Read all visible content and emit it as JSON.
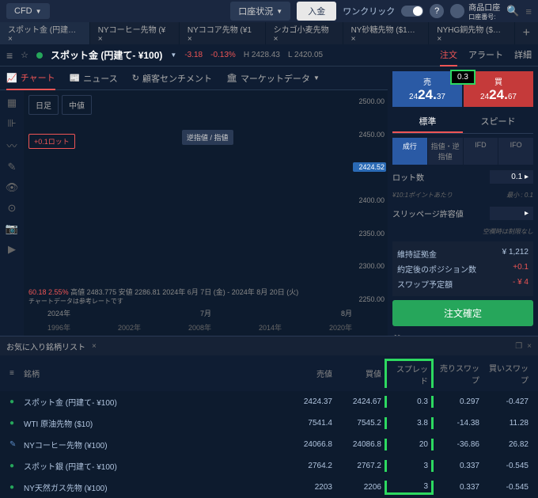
{
  "topbar": {
    "cfd": "CFD",
    "account_status": "口座状況",
    "deposit": "入金",
    "oneclick": "ワンクリック",
    "product_account": "商品口座",
    "account_num": "口座番号:"
  },
  "tabs": [
    {
      "label": "スポット金 (円建… ×",
      "active": true
    },
    {
      "label": "NYコーヒー先物 (¥ ×"
    },
    {
      "label": "NYココア先物 (¥1 ×"
    },
    {
      "label": "シカゴ小麦先物 ×"
    },
    {
      "label": "NY砂糖先物 ($1… ×"
    },
    {
      "label": "NYHG銅先物 ($… ×"
    }
  ],
  "symbol": {
    "name": "スポット金 (円建て- ¥100)",
    "chg": "-3.18",
    "chg_pct": "-0.13%",
    "h": "H 2428.43",
    "l": "L 2420.05"
  },
  "rtabs": {
    "order": "注文",
    "alert": "アラート",
    "detail": "詳細"
  },
  "sectabs": {
    "chart": "チャート",
    "news": "ニュース",
    "sentiment": "顧客センチメント",
    "market": "マーケットデータ"
  },
  "chart": {
    "tf1": "日足",
    "tf2": "中値",
    "lot": "+0.1ロット",
    "tooltip": "逆指値 / 指値",
    "yvals": [
      "2500.00",
      "2450.00",
      "2424.52",
      "2400.00",
      "2350.00",
      "2300.00",
      "2250.00"
    ],
    "xvals": [
      "2024年",
      "7月",
      "8月"
    ],
    "xvals2": [
      "1996年",
      "2002年",
      "2008年",
      "2014年",
      "2020年"
    ],
    "info_val": "60.18",
    "info_pct": "2.55%",
    "info_h": "高値 2483.775",
    "info_l": "安値 2286.81",
    "info_dates": "2024年 6月 7日 (金) - 2024年 8月 20日 (火)",
    "info_note": "チャートデータは参考レートです",
    "candles": [
      {
        "x": 2,
        "t": 70,
        "h": 15,
        "c": "#2a6ab5"
      },
      {
        "x": 4,
        "t": 65,
        "h": 12,
        "c": "#e55"
      },
      {
        "x": 6,
        "t": 68,
        "h": 18,
        "c": "#2a6ab5"
      },
      {
        "x": 8,
        "t": 72,
        "h": 10,
        "c": "#e55"
      },
      {
        "x": 10,
        "t": 75,
        "h": 14,
        "c": "#2a6ab5"
      },
      {
        "x": 12,
        "t": 70,
        "h": 8,
        "c": "#e55"
      },
      {
        "x": 14,
        "t": 73,
        "h": 16,
        "c": "#2a6ab5"
      },
      {
        "x": 16,
        "t": 68,
        "h": 12,
        "c": "#e55"
      },
      {
        "x": 18,
        "t": 65,
        "h": 10,
        "c": "#2a6ab5"
      },
      {
        "x": 20,
        "t": 60,
        "h": 14,
        "c": "#e55"
      },
      {
        "x": 24,
        "t": 55,
        "h": 18,
        "c": "#2a6ab5"
      },
      {
        "x": 28,
        "t": 50,
        "h": 12,
        "c": "#e55"
      },
      {
        "x": 32,
        "t": 52,
        "h": 10,
        "c": "#2a6ab5"
      },
      {
        "x": 36,
        "t": 48,
        "h": 16,
        "c": "#e55"
      },
      {
        "x": 40,
        "t": 45,
        "h": 14,
        "c": "#2a6ab5"
      },
      {
        "x": 44,
        "t": 42,
        "h": 12,
        "c": "#e55"
      },
      {
        "x": 48,
        "t": 38,
        "h": 18,
        "c": "#2a6ab5"
      },
      {
        "x": 52,
        "t": 35,
        "h": 10,
        "c": "#e55"
      },
      {
        "x": 56,
        "t": 40,
        "h": 22,
        "c": "#e55"
      },
      {
        "x": 60,
        "t": 32,
        "h": 14,
        "c": "#2a6ab5"
      },
      {
        "x": 64,
        "t": 28,
        "h": 16,
        "c": "#e55"
      },
      {
        "x": 68,
        "t": 25,
        "h": 12,
        "c": "#2a6ab5"
      },
      {
        "x": 72,
        "t": 30,
        "h": 18,
        "c": "#e55"
      },
      {
        "x": 76,
        "t": 22,
        "h": 14,
        "c": "#2a6ab5"
      },
      {
        "x": 80,
        "t": 18,
        "h": 20,
        "c": "#e55"
      },
      {
        "x": 84,
        "t": 15,
        "h": 12,
        "c": "#2a6ab5"
      },
      {
        "x": 88,
        "t": 20,
        "h": 16,
        "c": "#e55"
      },
      {
        "x": 92,
        "t": 25,
        "h": 14,
        "c": "#2a6ab5"
      },
      {
        "x": 96,
        "t": 28,
        "h": 10,
        "c": "#e55"
      }
    ]
  },
  "order": {
    "sell": "売",
    "buy": "買",
    "sell_price_pre": "24",
    "sell_price_big": "24.",
    "sell_price_post": "37",
    "buy_price_pre": "24",
    "buy_price_big": "24.",
    "buy_price_post": "67",
    "spread": "0.3",
    "standard": "標準",
    "speed": "スピード",
    "ot_market": "成行",
    "ot_limit": "指値・逆指値",
    "ot_ifd": "IFD",
    "ot_ifo": "IFO",
    "lot_label": "ロット数",
    "lot_val": "0.1",
    "lot_hint": "¥10:1ポイントあたり",
    "lot_min": "最小 : 0.1",
    "slip": "スリッページ許容値",
    "slip_hint": "空欄時は制限なし",
    "margin_label": "維持証拠金",
    "margin_val": "¥ 1,212",
    "pos_label": "約定後のポジション数",
    "pos_val": "+0.1",
    "swap_label": "スワップ予定額",
    "swap_val": "- ¥ 4",
    "submit": "注文確定"
  },
  "watchlist": {
    "title": "お気に入り銘柄リスト",
    "hdr_name": "銘柄",
    "hdr_sell": "売値",
    "hdr_buy": "買値",
    "hdr_spread": "スプレッド",
    "hdr_sswap": "売りスワップ",
    "hdr_bswap": "買いスワップ",
    "rows": [
      {
        "icon": "●",
        "ic": "#26a65b",
        "name": "スポット金 (円建て- ¥100)",
        "sell": "2424.37",
        "buy": "2424.67",
        "spread": "0.3",
        "sswap": "0.297",
        "bswap": "-0.427"
      },
      {
        "icon": "●",
        "ic": "#26a65b",
        "name": "WTI 原油先物 ($10)",
        "sell": "7541.4",
        "buy": "7545.2",
        "spread": "3.8",
        "sswap": "-14.38",
        "bswap": "11.28"
      },
      {
        "icon": "✎",
        "ic": "#5a8ac5",
        "name": "NYコーヒー先物 (¥100)",
        "sell": "24066.8",
        "buy": "24086.8",
        "spread": "20",
        "sswap": "-36.86",
        "bswap": "26.82"
      },
      {
        "icon": "●",
        "ic": "#26a65b",
        "name": "スポット銀 (円建て- ¥100)",
        "sell": "2764.2",
        "buy": "2767.2",
        "spread": "3",
        "sswap": "0.337",
        "bswap": "-0.545"
      },
      {
        "icon": "●",
        "ic": "#26a65b",
        "name": "NY天然ガス先物 (¥100)",
        "sell": "2203",
        "buy": "2206",
        "spread": "3",
        "sswap": "0.337",
        "bswap": "-0.545"
      }
    ]
  }
}
